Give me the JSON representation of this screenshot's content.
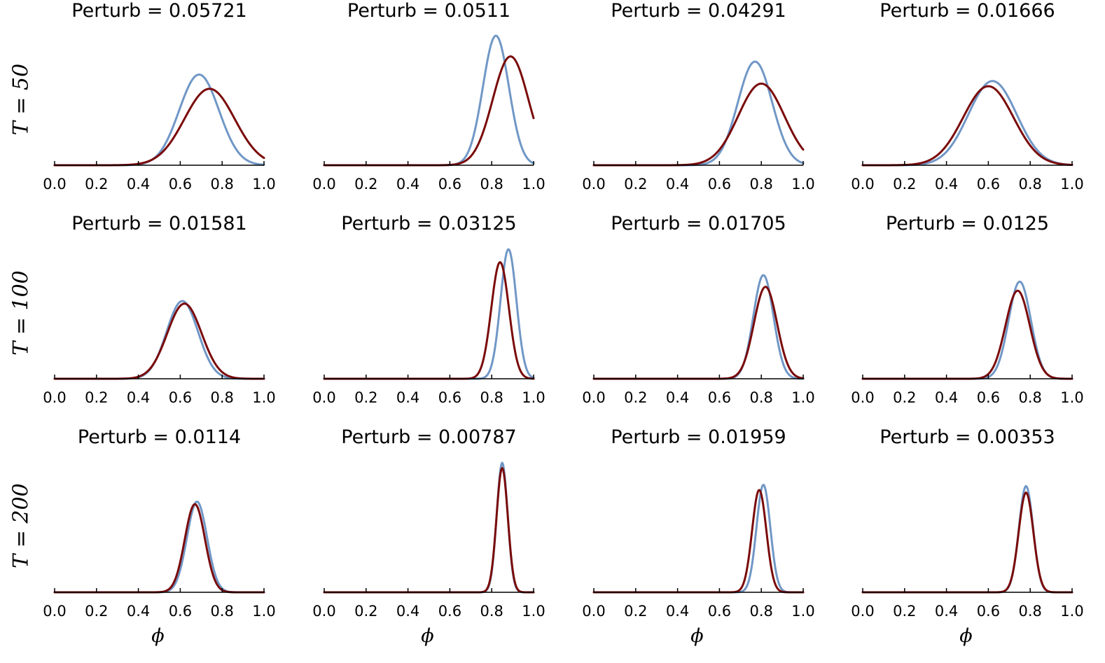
{
  "colors": {
    "blue": "#7097c6",
    "red": "#7a0a0a"
  },
  "x_axis_label": "ϕ",
  "chart_data": {
    "type": "line",
    "layout": "grid 3 rows x 4 columns",
    "x_axis_label": "ϕ",
    "x_ticks": [
      "0.0",
      "0.2",
      "0.4",
      "0.6",
      "0.8",
      "1.0"
    ],
    "xlim": [
      0.0,
      1.0
    ],
    "series_names": [
      "blue",
      "red"
    ],
    "rows": [
      {
        "label": "T = 50",
        "panels": [
          {
            "title": "Perturb = 0.05721",
            "blue": {
              "peak_x": 0.69,
              "height": 0.7,
              "sd": 0.095
            },
            "red": {
              "peak_x": 0.74,
              "height": 0.59,
              "sd": 0.12
            }
          },
          {
            "title": "Perturb = 0.0511",
            "blue": {
              "peak_x": 0.82,
              "height": 1.0,
              "sd": 0.062
            },
            "red": {
              "peak_x": 0.89,
              "height": 0.84,
              "sd": 0.085
            }
          },
          {
            "title": "Perturb = 0.04291",
            "blue": {
              "peak_x": 0.77,
              "height": 0.8,
              "sd": 0.082
            },
            "red": {
              "peak_x": 0.8,
              "height": 0.63,
              "sd": 0.11
            }
          },
          {
            "title": "Perturb = 0.01666",
            "blue": {
              "peak_x": 0.62,
              "height": 0.65,
              "sd": 0.115
            },
            "red": {
              "peak_x": 0.6,
              "height": 0.61,
              "sd": 0.12
            }
          }
        ]
      },
      {
        "label": "T = 100",
        "panels": [
          {
            "title": "Perturb = 0.01581",
            "blue": {
              "peak_x": 0.61,
              "height": 0.6,
              "sd": 0.075
            },
            "red": {
              "peak_x": 0.62,
              "height": 0.58,
              "sd": 0.082
            }
          },
          {
            "title": "Perturb = 0.03125",
            "blue": {
              "peak_x": 0.88,
              "height": 1.0,
              "sd": 0.038
            },
            "red": {
              "peak_x": 0.84,
              "height": 0.9,
              "sd": 0.042
            }
          },
          {
            "title": "Perturb = 0.01705",
            "blue": {
              "peak_x": 0.81,
              "height": 0.8,
              "sd": 0.048
            },
            "red": {
              "peak_x": 0.82,
              "height": 0.71,
              "sd": 0.055
            }
          },
          {
            "title": "Perturb = 0.0125",
            "blue": {
              "peak_x": 0.75,
              "height": 0.75,
              "sd": 0.053
            },
            "red": {
              "peak_x": 0.74,
              "height": 0.68,
              "sd": 0.058
            }
          }
        ]
      },
      {
        "label": "T = 200",
        "panels": [
          {
            "title": "Perturb = 0.0114",
            "blue": {
              "peak_x": 0.68,
              "height": 0.7,
              "sd": 0.048
            },
            "red": {
              "peak_x": 0.67,
              "height": 0.68,
              "sd": 0.048
            }
          },
          {
            "title": "Perturb = 0.00787",
            "blue": {
              "peak_x": 0.85,
              "height": 1.0,
              "sd": 0.026
            },
            "red": {
              "peak_x": 0.85,
              "height": 0.96,
              "sd": 0.027
            }
          },
          {
            "title": "Perturb = 0.01959",
            "blue": {
              "peak_x": 0.81,
              "height": 0.83,
              "sd": 0.033
            },
            "red": {
              "peak_x": 0.79,
              "height": 0.79,
              "sd": 0.034
            }
          },
          {
            "title": "Perturb = 0.00353",
            "blue": {
              "peak_x": 0.78,
              "height": 0.82,
              "sd": 0.034
            },
            "red": {
              "peak_x": 0.78,
              "height": 0.77,
              "sd": 0.035
            }
          }
        ]
      }
    ]
  }
}
